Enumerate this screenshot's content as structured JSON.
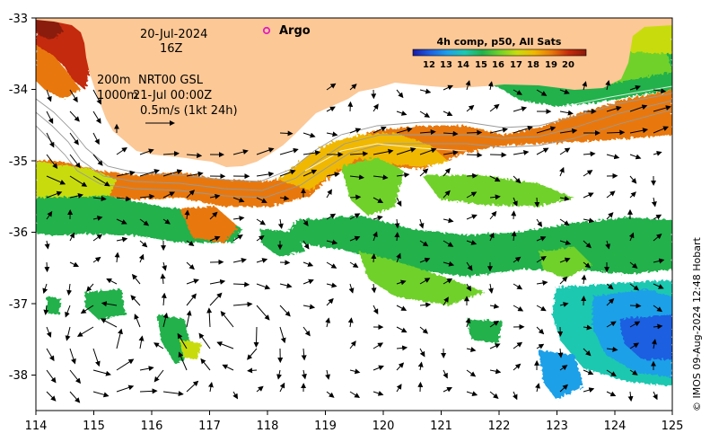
{
  "annotations": {
    "date": "20-Jul-2024",
    "hour": "16Z",
    "isobath_200": "200m",
    "isobath_1000": "1000m",
    "product": "NRT00 GSL",
    "product_time": "21-Jul 00:00Z",
    "vector_scale": "0.5m/s (1kt 24h)",
    "argo_label": "Argo"
  },
  "legend": {
    "title": "4h comp, p50, All Sats",
    "ticks": [
      "12",
      "13",
      "14",
      "15",
      "16",
      "17",
      "18",
      "19",
      "20"
    ],
    "colors": [
      "#1a1aa8",
      "#1e5fe0",
      "#1fa0e8",
      "#1ec8b0",
      "#22b14c",
      "#6fd12a",
      "#c8dc10",
      "#f0b800",
      "#e8780a",
      "#c42a0a",
      "#8a1a0a"
    ]
  },
  "credit": "© IMOS 09-Aug-2024 12:48 Hobart",
  "axes": {
    "x_ticks": [
      "114",
      "115",
      "116",
      "117",
      "118",
      "119",
      "120",
      "121",
      "122",
      "123",
      "124",
      "125"
    ],
    "y_ticks": [
      "-33",
      "-34",
      "-35",
      "-36",
      "-37",
      "-38"
    ]
  },
  "colors": {
    "land": "#fcc896",
    "argo_marker": "#e020c0"
  }
}
